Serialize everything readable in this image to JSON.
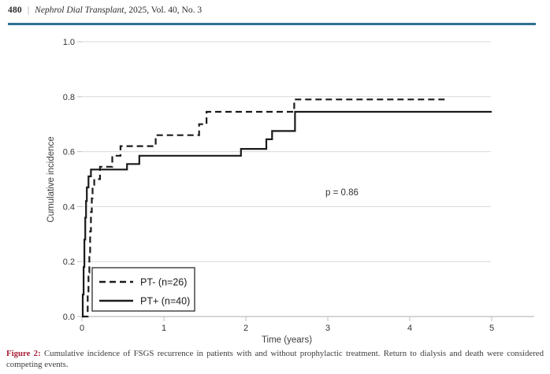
{
  "header": {
    "page_number": "480",
    "separator": "|",
    "journal": "Nephrol Dial Transplant",
    "issue_info": ", 2025, Vol. 40, No. 3",
    "rule_color": "#2e7095"
  },
  "chart_data": {
    "type": "line",
    "subtype": "step-cumulative-incidence",
    "title": "",
    "xlabel": "Time (years)",
    "ylabel": "Cumulative incidence",
    "xlim": [
      0,
      5
    ],
    "ylim": [
      0.0,
      1.0
    ],
    "x_ticks": [
      0,
      1,
      2,
      3,
      4,
      5
    ],
    "y_ticks": [
      0.0,
      0.2,
      0.4,
      0.6,
      0.8,
      1.0
    ],
    "grid": "horizontal-only",
    "line_color": "#1a1a1a",
    "grid_color": "#d9d9d9",
    "annotation": {
      "text": "p = 0.86",
      "x": 3.0,
      "y": 0.45
    },
    "legend": {
      "position": "lower-left",
      "border": true
    },
    "series": [
      {
        "name": "PT- (n=26)",
        "style": "dashed",
        "x_end": 4.44,
        "steps": [
          [
            0.07,
            0.08
          ],
          [
            0.08,
            0.16
          ],
          [
            0.09,
            0.23
          ],
          [
            0.1,
            0.31
          ],
          [
            0.11,
            0.38
          ],
          [
            0.12,
            0.43
          ],
          [
            0.13,
            0.47
          ],
          [
            0.15,
            0.5
          ],
          [
            0.22,
            0.545
          ],
          [
            0.37,
            0.585
          ],
          [
            0.47,
            0.62
          ],
          [
            0.9,
            0.66
          ],
          [
            1.43,
            0.7
          ],
          [
            1.52,
            0.745
          ],
          [
            2.59,
            0.79
          ]
        ]
      },
      {
        "name": "PT+ (n=40)",
        "style": "solid",
        "x_end": 5.0,
        "steps": [
          [
            0.01,
            0.08
          ],
          [
            0.02,
            0.18
          ],
          [
            0.03,
            0.28
          ],
          [
            0.04,
            0.36
          ],
          [
            0.05,
            0.42
          ],
          [
            0.06,
            0.47
          ],
          [
            0.08,
            0.51
          ],
          [
            0.11,
            0.535
          ],
          [
            0.55,
            0.555
          ],
          [
            0.7,
            0.585
          ],
          [
            1.94,
            0.61
          ],
          [
            2.25,
            0.645
          ],
          [
            2.32,
            0.675
          ],
          [
            2.6,
            0.745
          ]
        ]
      }
    ]
  },
  "caption": {
    "label": "Figure 2:",
    "text": "Cumulative incidence of FSGS recurrence in patients with and without prophylactic treatment. Return to dialysis and death were considered competing events."
  }
}
